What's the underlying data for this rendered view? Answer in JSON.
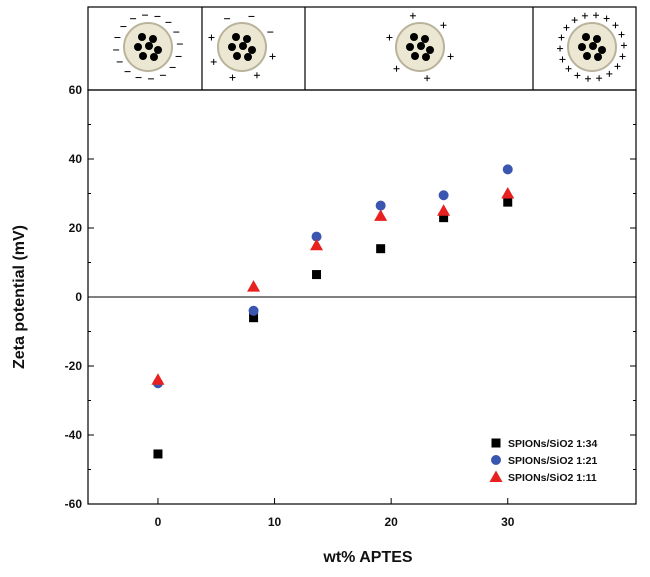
{
  "chart_data": {
    "type": "scatter",
    "xlabel": "wt% APTES",
    "ylabel": "Zeta potential (mV)",
    "xlim": [
      -6,
      41
    ],
    "xticks": [
      0,
      10,
      20,
      30
    ],
    "ylim": [
      -60,
      60
    ],
    "yticks": [
      -60,
      -40,
      -20,
      0,
      20,
      40,
      60
    ],
    "legend": "lower right",
    "series": [
      {
        "name": "SPIONs/SiO2 1:34",
        "color": "#000000",
        "marker": "square",
        "x": [
          0,
          8.2,
          13.6,
          19.1,
          24.5,
          30
        ],
        "values": [
          -45.5,
          -6,
          6.5,
          14,
          23,
          27.5
        ]
      },
      {
        "name": "SPIONs/SiO2 1:21",
        "color": "#3a56b0",
        "marker": "circle",
        "x": [
          0,
          8.2,
          13.6,
          19.1,
          24.5,
          30
        ],
        "values": [
          -25,
          -4,
          17.5,
          26.5,
          29.5,
          37
        ]
      },
      {
        "name": "SPIONs/SiO2 1:11",
        "color": "#e82020",
        "marker": "triangle",
        "x": [
          0,
          8.2,
          13.6,
          19.1,
          24.5,
          30
        ],
        "values": [
          -24,
          3,
          15,
          23.5,
          25,
          30
        ]
      }
    ]
  }
}
